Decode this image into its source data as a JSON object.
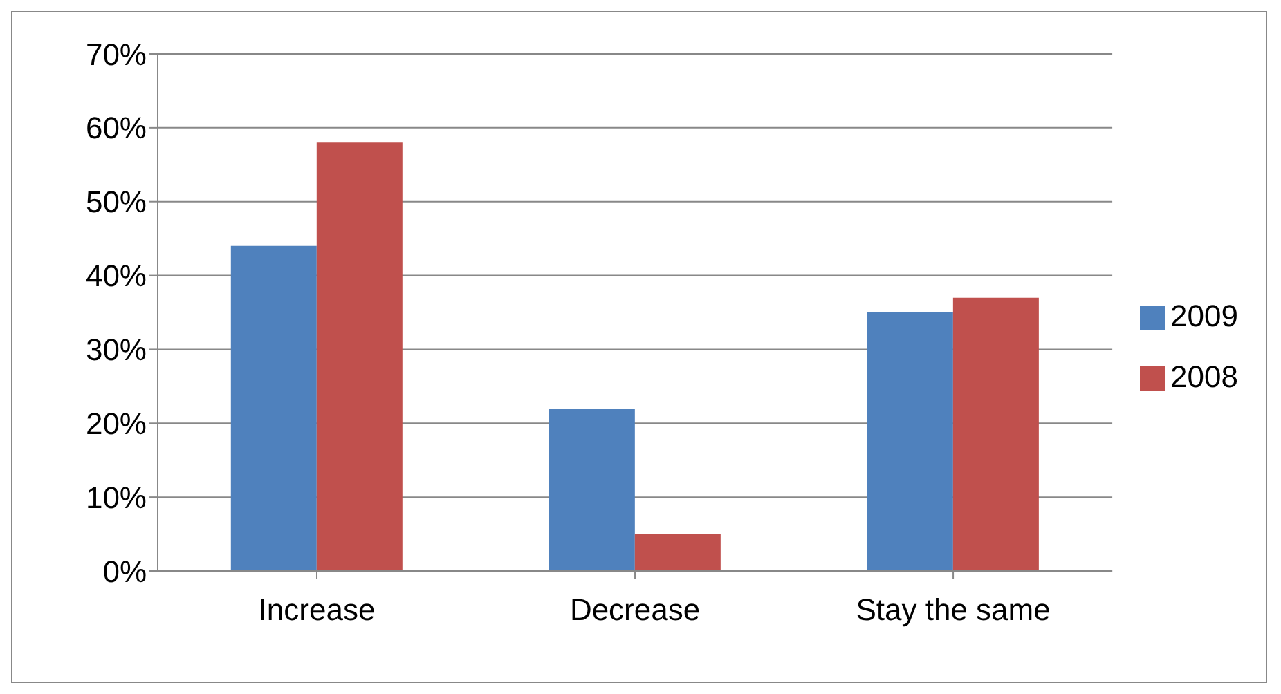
{
  "chart_data": {
    "type": "bar",
    "categories": [
      "Increase",
      "Decrease",
      "Stay the same"
    ],
    "series": [
      {
        "name": "2009",
        "color": "#4f81bd",
        "values": [
          44,
          22,
          35
        ]
      },
      {
        "name": "2008",
        "color": "#c0504d",
        "values": [
          58,
          5,
          37
        ]
      }
    ],
    "ylim": [
      0,
      70
    ],
    "yticks": [
      {
        "value": 0,
        "label": "0%"
      },
      {
        "value": 10,
        "label": "10%"
      },
      {
        "value": 20,
        "label": "20%"
      },
      {
        "value": 30,
        "label": "30%"
      },
      {
        "value": 40,
        "label": "40%"
      },
      {
        "value": 50,
        "label": "50%"
      },
      {
        "value": 60,
        "label": "60%"
      },
      {
        "value": 70,
        "label": "70%"
      }
    ],
    "grid": "y",
    "legend": "right"
  }
}
